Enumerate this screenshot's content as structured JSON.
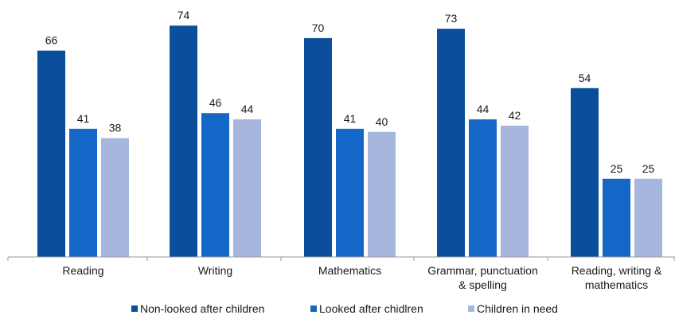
{
  "chart_data": {
    "type": "bar",
    "categories": [
      [
        "Reading"
      ],
      [
        "Writing"
      ],
      [
        "Mathematics"
      ],
      [
        "Grammar, punctuation",
        "& spelling"
      ],
      [
        "Reading, writing &",
        "mathematics"
      ]
    ],
    "series": [
      {
        "name": "Non-looked after children",
        "color": "#0b4f9c",
        "values": [
          66,
          74,
          70,
          73,
          54
        ]
      },
      {
        "name": "Looked after chidlren",
        "color": "#1467c6",
        "values": [
          41,
          46,
          41,
          44,
          25
        ]
      },
      {
        "name": "Children in need",
        "color": "#a6b6dc",
        "values": [
          38,
          44,
          40,
          42,
          25
        ]
      }
    ],
    "ylim": [
      0,
      80
    ],
    "grid": false,
    "legend_position": "bottom"
  }
}
